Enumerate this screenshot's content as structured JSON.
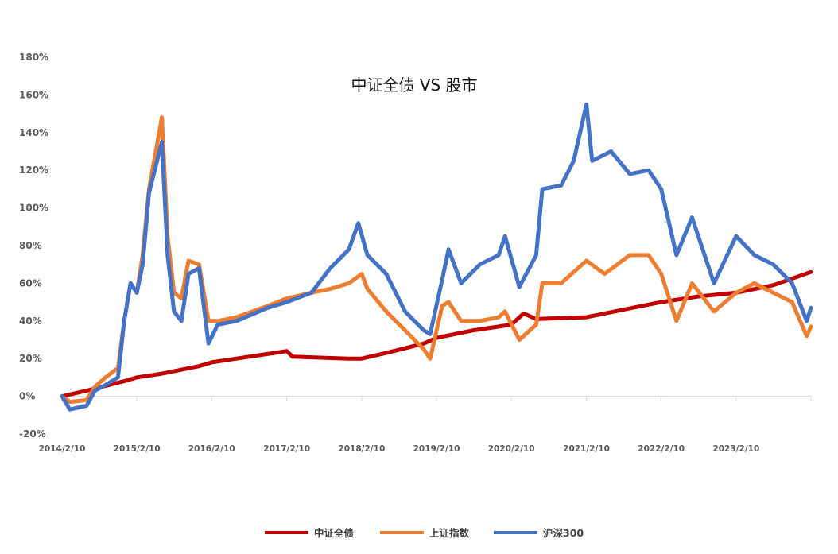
{
  "chart_data": {
    "type": "line",
    "title": "中证全债  VS  股市",
    "xlabel": "",
    "ylabel": "",
    "ylim": [
      -20,
      180
    ],
    "y_ticks": [
      "-20%",
      "0%",
      "20%",
      "40%",
      "60%",
      "80%",
      "100%",
      "120%",
      "140%",
      "160%",
      "180%"
    ],
    "x_ticks": [
      "2014/2/10",
      "2015/2/10",
      "2016/2/10",
      "2017/2/10",
      "2018/2/10",
      "2019/2/10",
      "2020/2/10",
      "2021/2/10",
      "2022/2/10",
      "2023/2/10"
    ],
    "x_range": [
      "2014/2/10",
      "2024/2/10"
    ],
    "legend_position": "bottom",
    "grid": false,
    "series": [
      {
        "name": "中证全债",
        "color": "#C00000",
        "points": [
          [
            "2014/2/10",
            0
          ],
          [
            "2014/6/10",
            3
          ],
          [
            "2014/12/10",
            8
          ],
          [
            "2015/2/10",
            10
          ],
          [
            "2015/6/10",
            12
          ],
          [
            "2015/12/10",
            16
          ],
          [
            "2016/2/10",
            18
          ],
          [
            "2016/6/10",
            20
          ],
          [
            "2016/12/10",
            23
          ],
          [
            "2017/2/10",
            24
          ],
          [
            "2017/3/10",
            21
          ],
          [
            "2017/12/10",
            20
          ],
          [
            "2018/2/10",
            20
          ],
          [
            "2018/6/10",
            23
          ],
          [
            "2018/12/10",
            28
          ],
          [
            "2019/2/10",
            31
          ],
          [
            "2019/8/10",
            35
          ],
          [
            "2020/2/10",
            38
          ],
          [
            "2020/4/10",
            44
          ],
          [
            "2020/6/10",
            41
          ],
          [
            "2021/2/10",
            42
          ],
          [
            "2021/8/10",
            46
          ],
          [
            "2022/2/10",
            50
          ],
          [
            "2022/8/10",
            53
          ],
          [
            "2023/2/10",
            55
          ],
          [
            "2023/8/10",
            59
          ],
          [
            "2024/2/10",
            66
          ]
        ]
      },
      {
        "name": "上证指数",
        "color": "#ED7D31",
        "points": [
          [
            "2014/2/10",
            0
          ],
          [
            "2014/3/20",
            -3
          ],
          [
            "2014/6/10",
            -2
          ],
          [
            "2014/7/20",
            5
          ],
          [
            "2014/9/10",
            10
          ],
          [
            "2014/11/10",
            15
          ],
          [
            "2014/12/10",
            40
          ],
          [
            "2015/1/10",
            60
          ],
          [
            "2015/2/10",
            55
          ],
          [
            "2015/3/10",
            75
          ],
          [
            "2015/4/10",
            110
          ],
          [
            "2015/6/12",
            148
          ],
          [
            "2015/7/10",
            85
          ],
          [
            "2015/8/10",
            55
          ],
          [
            "2015/9/15",
            52
          ],
          [
            "2015/10/20",
            72
          ],
          [
            "2015/12/10",
            70
          ],
          [
            "2016/1/25",
            40
          ],
          [
            "2016/3/10",
            40
          ],
          [
            "2016/6/10",
            42
          ],
          [
            "2016/11/10",
            48
          ],
          [
            "2017/2/10",
            52
          ],
          [
            "2017/6/10",
            55
          ],
          [
            "2017/9/10",
            57
          ],
          [
            "2017/12/10",
            60
          ],
          [
            "2018/2/10",
            65
          ],
          [
            "2018/3/10",
            57
          ],
          [
            "2018/6/10",
            45
          ],
          [
            "2018/9/10",
            35
          ],
          [
            "2018/12/10",
            25
          ],
          [
            "2019/1/10",
            20
          ],
          [
            "2019/3/10",
            48
          ],
          [
            "2019/4/10",
            50
          ],
          [
            "2019/6/10",
            40
          ],
          [
            "2019/9/10",
            40
          ],
          [
            "2019/12/10",
            42
          ],
          [
            "2020/1/10",
            45
          ],
          [
            "2020/3/20",
            30
          ],
          [
            "2020/6/10",
            38
          ],
          [
            "2020/7/10",
            60
          ],
          [
            "2020/10/10",
            60
          ],
          [
            "2021/2/10",
            72
          ],
          [
            "2021/5/10",
            65
          ],
          [
            "2021/9/10",
            75
          ],
          [
            "2021/12/10",
            75
          ],
          [
            "2022/2/10",
            65
          ],
          [
            "2022/4/25",
            40
          ],
          [
            "2022/7/10",
            60
          ],
          [
            "2022/10/25",
            45
          ],
          [
            "2023/2/10",
            55
          ],
          [
            "2023/5/10",
            60
          ],
          [
            "2023/8/10",
            55
          ],
          [
            "2023/11/10",
            50
          ],
          [
            "2024/1/20",
            32
          ],
          [
            "2024/2/10",
            37
          ]
        ]
      },
      {
        "name": "沪深300",
        "color": "#4472C4",
        "points": [
          [
            "2014/2/10",
            0
          ],
          [
            "2014/3/20",
            -7
          ],
          [
            "2014/6/10",
            -5
          ],
          [
            "2014/7/20",
            3
          ],
          [
            "2014/9/10",
            6
          ],
          [
            "2014/11/10",
            10
          ],
          [
            "2014/12/10",
            40
          ],
          [
            "2015/1/10",
            60
          ],
          [
            "2015/2/10",
            55
          ],
          [
            "2015/3/10",
            70
          ],
          [
            "2015/4/10",
            108
          ],
          [
            "2015/6/12",
            135
          ],
          [
            "2015/7/10",
            75
          ],
          [
            "2015/8/10",
            45
          ],
          [
            "2015/9/15",
            40
          ],
          [
            "2015/10/20",
            65
          ],
          [
            "2015/12/10",
            68
          ],
          [
            "2016/1/25",
            28
          ],
          [
            "2016/3/10",
            38
          ],
          [
            "2016/6/10",
            40
          ],
          [
            "2016/11/10",
            47
          ],
          [
            "2017/2/10",
            50
          ],
          [
            "2017/6/10",
            55
          ],
          [
            "2017/9/10",
            68
          ],
          [
            "2017/12/10",
            78
          ],
          [
            "2018/1/25",
            92
          ],
          [
            "2018/3/10",
            75
          ],
          [
            "2018/6/10",
            65
          ],
          [
            "2018/9/10",
            45
          ],
          [
            "2018/12/10",
            35
          ],
          [
            "2019/1/10",
            33
          ],
          [
            "2019/3/10",
            62
          ],
          [
            "2019/4/10",
            78
          ],
          [
            "2019/6/10",
            60
          ],
          [
            "2019/9/10",
            70
          ],
          [
            "2019/12/10",
            75
          ],
          [
            "2020/1/10",
            85
          ],
          [
            "2020/3/20",
            58
          ],
          [
            "2020/6/10",
            75
          ],
          [
            "2020/7/10",
            110
          ],
          [
            "2020/10/10",
            112
          ],
          [
            "2020/12/10",
            125
          ],
          [
            "2021/2/10",
            155
          ],
          [
            "2021/3/10",
            125
          ],
          [
            "2021/6/10",
            130
          ],
          [
            "2021/9/10",
            118
          ],
          [
            "2021/12/10",
            120
          ],
          [
            "2022/2/10",
            110
          ],
          [
            "2022/4/25",
            75
          ],
          [
            "2022/7/10",
            95
          ],
          [
            "2022/10/25",
            60
          ],
          [
            "2023/2/10",
            85
          ],
          [
            "2023/5/10",
            75
          ],
          [
            "2023/8/10",
            70
          ],
          [
            "2023/11/10",
            60
          ],
          [
            "2024/1/20",
            40
          ],
          [
            "2024/2/10",
            47
          ]
        ]
      }
    ]
  }
}
